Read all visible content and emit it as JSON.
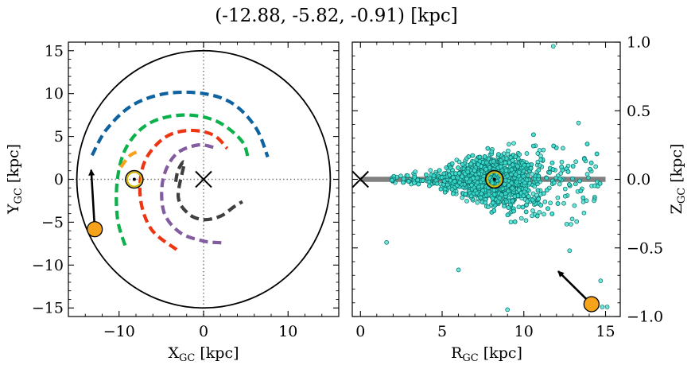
{
  "title": "(-12.88, -5.82, -0.91) [kpc]",
  "colors": {
    "arm_blue": "#0f62a0",
    "arm_green": "#0db14b",
    "arm_orange": "#f7a21b",
    "arm_red": "#ee3511",
    "arm_purple": "#835c9f",
    "arm_gray": "#3f3f3f",
    "points_fill": "#3de0d2",
    "points_edge": "#0b6e67",
    "marker_orange": "#f7a21b",
    "sun_ring": "#d4b400",
    "zero_band": "#808080"
  },
  "chart_data": [
    {
      "type": "scatter",
      "panel": "left",
      "xlabel": "X$_{GC}$ [kpc]",
      "xlabel_main": "X",
      "xlabel_sub": "GC",
      "xlabel_unit": " [kpc]",
      "ylabel_main": "Y",
      "ylabel_sub": "GC",
      "ylabel_unit": " [kpc]",
      "xlim": [
        -16,
        16
      ],
      "ylim": [
        -16,
        16
      ],
      "xticks": [
        -10,
        0,
        10
      ],
      "xtick_labels": [
        "−10",
        "0",
        "10"
      ],
      "yticks": [
        15,
        10,
        5,
        0,
        -5,
        -10,
        -15
      ],
      "ytick_labels": [
        "15",
        "10",
        "5",
        "0",
        "−5",
        "−10",
        "−15"
      ],
      "grid": false,
      "reference_lines": {
        "x": 0,
        "y": 0,
        "style": "dotted"
      },
      "boundary_circle_radius": 15,
      "galactic_center": [
        0,
        0
      ],
      "sun": [
        -8.2,
        0
      ],
      "object": [
        -12.88,
        -5.82
      ],
      "velocity_arrow": {
        "from": [
          -12.88,
          -5.82
        ],
        "to": [
          -13.3,
          1.1
        ]
      },
      "spiral_arms": [
        {
          "color": "arm_blue",
          "points": [
            [
              -13.2,
              2.8
            ],
            [
              -11.5,
              5.8
            ],
            [
              -8.5,
              8.6
            ],
            [
              -4.5,
              10
            ],
            [
              0,
              10
            ],
            [
              3.5,
              8.8
            ],
            [
              6.2,
              6
            ],
            [
              7.6,
              2.6
            ]
          ]
        },
        {
          "color": "arm_green",
          "points": [
            [
              -9.3,
              -7.7
            ],
            [
              -10.2,
              -4.5
            ],
            [
              -10.2,
              0
            ],
            [
              -9.1,
              3.8
            ],
            [
              -6.5,
              6.5
            ],
            [
              -2.5,
              7.5
            ],
            [
              1.5,
              6.8
            ],
            [
              4.5,
              4.5
            ],
            [
              5.3,
              2.3
            ]
          ]
        },
        {
          "color": "arm_orange",
          "points": [
            [
              -9.8,
              1.4
            ],
            [
              -8.8,
              2.7
            ],
            [
              -7.9,
              3.2
            ]
          ]
        },
        {
          "color": "arm_red",
          "points": [
            [
              -3.2,
              -8.2
            ],
            [
              -6.2,
              -5.8
            ],
            [
              -7.5,
              -2
            ],
            [
              -7,
              2
            ],
            [
              -4.7,
              4.8
            ],
            [
              -1.8,
              5.7
            ],
            [
              1.1,
              5.2
            ],
            [
              2.8,
              3.6
            ]
          ]
        },
        {
          "color": "arm_purple",
          "points": [
            [
              2.1,
              -7.4
            ],
            [
              0,
              -7.2
            ],
            [
              -2.8,
              -6.2
            ],
            [
              -4.7,
              -3.8
            ],
            [
              -4.8,
              0
            ],
            [
              -3.3,
              2.9
            ],
            [
              -0.7,
              4
            ],
            [
              1.3,
              3.7
            ]
          ]
        },
        {
          "color": "arm_gray",
          "points": [
            [
              -3.3,
              -0.3
            ],
            [
              -3,
              1.1
            ],
            [
              -2.3,
              1.9
            ],
            [
              -3,
              -2
            ],
            [
              -1.8,
              -4
            ],
            [
              0,
              -4.7
            ],
            [
              2,
              -4.3
            ],
            [
              3.6,
              -3.2
            ],
            [
              4.6,
              -2.6
            ]
          ]
        }
      ]
    },
    {
      "type": "scatter",
      "panel": "right",
      "xlabel_main": "R",
      "xlabel_sub": "GC",
      "xlabel_unit": " [kpc]",
      "ylabel_main": "Z",
      "ylabel_sub": "GC",
      "ylabel_unit": " [kpc]",
      "xlim": [
        -0.5,
        15.9
      ],
      "ylim": [
        -1.0,
        1.0
      ],
      "xticks": [
        0,
        5,
        10,
        15
      ],
      "xtick_labels": [
        "0",
        "5",
        "10",
        "15"
      ],
      "yticks": [
        1.0,
        0.5,
        0.0,
        -0.5,
        -1.0
      ],
      "ytick_labels": [
        "1.0",
        "0.5",
        "0.0",
        "−0.5",
        "−1.0"
      ],
      "yaxis_position": "right",
      "grid": false,
      "zero_band": {
        "x": [
          0,
          15
        ],
        "y": 0
      },
      "galactic_center": [
        0,
        0
      ],
      "sun": [
        8.2,
        0
      ],
      "object": [
        14.14,
        -0.91
      ],
      "velocity_arrow": {
        "from": [
          14.14,
          -0.91
        ],
        "to": [
          12.1,
          -0.67
        ]
      },
      "scatter_points": {
        "approx_count": 1800,
        "center": [
          8.2,
          0
        ],
        "r_range": [
          1.5,
          15.5
        ],
        "z_spread_min": 0.06,
        "z_spread_max": 0.55,
        "outliers": [
          [
            1.6,
            -0.46
          ],
          [
            6.0,
            -0.66
          ],
          [
            9.0,
            -0.95
          ],
          [
            11.8,
            0.97
          ],
          [
            14.8,
            -0.93
          ],
          [
            15.1,
            -0.93
          ],
          [
            14.7,
            -0.74
          ],
          [
            12.8,
            -0.52
          ]
        ]
      }
    }
  ]
}
